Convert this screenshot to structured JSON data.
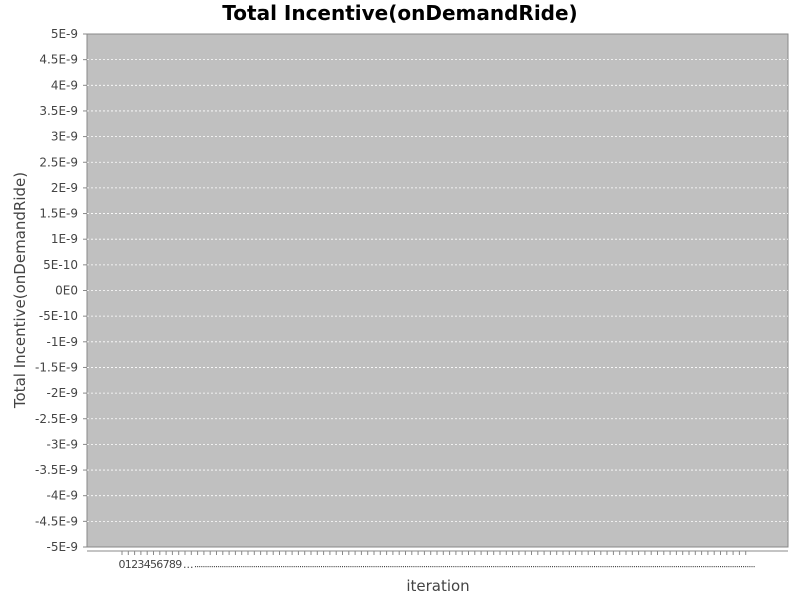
{
  "chart_data": {
    "type": "line",
    "title": "Total Incentive(onDemandRide)",
    "xlabel": "iteration",
    "ylabel": "Total Incentive(onDemandRide)",
    "ylim": [
      -5e-09,
      5e-09
    ],
    "yticks": [
      "5E-9",
      "4.5E-9",
      "4E-9",
      "3.5E-9",
      "3E-9",
      "2.5E-9",
      "2E-9",
      "1.5E-9",
      "1E-9",
      "5E-10",
      "0E0",
      "-5E-10",
      "-1E-9",
      "-1.5E-9",
      "-2E-9",
      "-2.5E-9",
      "-3E-9",
      "-3.5E-9",
      "-4E-9",
      "-4.5E-9",
      "-5E-9"
    ],
    "x_tick_labels": [
      "0",
      "1",
      "2",
      "3",
      "4",
      "5",
      "6",
      "7",
      "8",
      "9"
    ],
    "x_tick_overflow": "...",
    "x_category_count": 100,
    "grid": true,
    "series": [],
    "colors": {
      "plot_background": "#c0c0c0",
      "gridline": "#ffffff",
      "axis": "#888888",
      "text": "#444444"
    }
  }
}
